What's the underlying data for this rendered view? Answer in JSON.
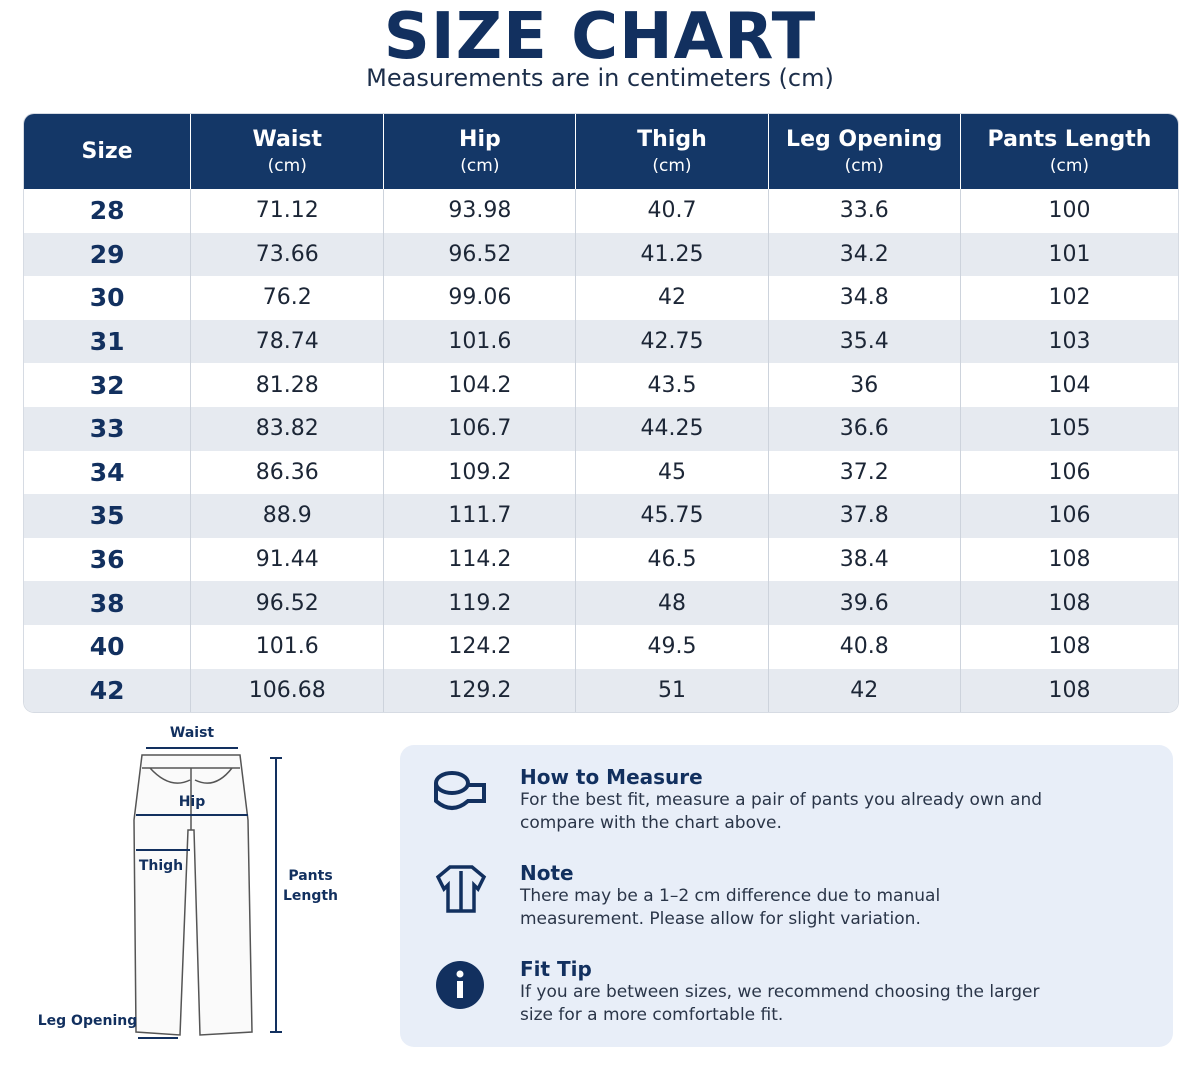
{
  "header": {
    "title": "SIZE CHART",
    "subtitle": "Measurements are in centimeters (cm)"
  },
  "table": {
    "columns": [
      {
        "name": "Size"
      },
      {
        "name": "Waist",
        "unit": "(cm)"
      },
      {
        "name": "Hip",
        "unit": "(cm)"
      },
      {
        "name": "Thigh",
        "unit": "(cm)"
      },
      {
        "name": "Leg Opening",
        "unit": "(cm)"
      },
      {
        "name": "Pants Length",
        "unit": "(cm)"
      }
    ],
    "rows": [
      [
        28,
        71.12,
        93.98,
        40.7,
        33.6,
        100
      ],
      [
        29,
        73.66,
        96.52,
        41.25,
        34.2,
        101
      ],
      [
        30,
        76.2,
        99.06,
        42,
        34.8,
        102
      ],
      [
        31,
        78.74,
        101.6,
        42.75,
        35.4,
        103
      ],
      [
        32,
        81.28,
        104.2,
        43.5,
        36,
        104
      ],
      [
        33,
        83.82,
        106.7,
        44.25,
        36.6,
        105
      ],
      [
        34,
        86.36,
        109.2,
        45,
        37.2,
        106
      ],
      [
        35,
        88.9,
        111.7,
        45.75,
        37.8,
        106
      ],
      [
        36,
        91.44,
        114.2,
        46.5,
        38.4,
        108
      ],
      [
        38,
        96.52,
        119.2,
        48,
        39.6,
        108
      ],
      [
        40,
        101.6,
        124.2,
        49.5,
        40.8,
        108
      ],
      [
        42,
        106.68,
        129.2,
        51,
        42,
        108
      ]
    ]
  },
  "diagram": {
    "labels": {
      "waist": "Waist",
      "hip": "Hip",
      "thigh": "Thigh",
      "length": "Pants Length",
      "leg_opening": "Leg Opening"
    }
  },
  "notes": [
    {
      "title": "How to Measure",
      "text": "For the best fit, measure a pair of pants you already own and compare with the chart above."
    },
    {
      "title": "Note",
      "text": "There may be a 1–2 cm difference due to manual measurement. Please allow for slight variation."
    },
    {
      "title": "Fit Tip",
      "text": "If you are between sizes, we recommend choosing the larger size for a more comfortable fit."
    }
  ]
}
